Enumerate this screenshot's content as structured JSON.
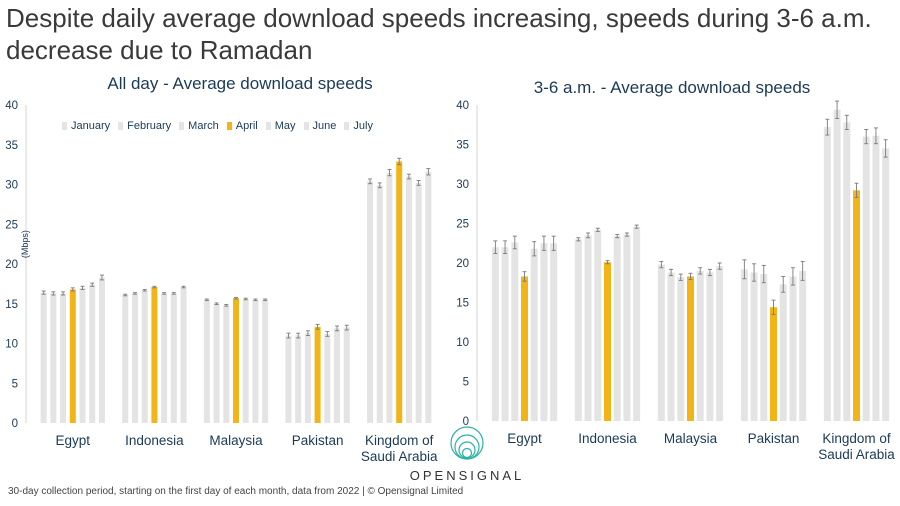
{
  "headline": "Despite daily average download speeds increasing, speeds during 3-6 a.m. decrease due to Ramadan",
  "footnote": "30-day collection period, starting on the first day of each month, data from 2022 | © Opensignal Limited",
  "logo": {
    "text": "OPENSIGNAL",
    "icon": "concentric-circles-icon"
  },
  "colors": {
    "other_months": "#e4e4e4",
    "highlight": "#f2b416",
    "axis_text": "#1b3a57",
    "error_bar": "#7a7a7a"
  },
  "legend": [
    {
      "label": "January",
      "color": "#e4e4e4"
    },
    {
      "label": "February",
      "color": "#e4e4e4"
    },
    {
      "label": "March",
      "color": "#e4e4e4"
    },
    {
      "label": "April",
      "color": "#f2b416"
    },
    {
      "label": "May",
      "color": "#e4e4e4"
    },
    {
      "label": "June",
      "color": "#e4e4e4"
    },
    {
      "label": "July",
      "color": "#e4e4e4"
    }
  ],
  "chart_data": [
    {
      "type": "bar",
      "title": "All day - Average download speeds",
      "ylabel": "(Mbps)",
      "ylim": [
        0,
        40
      ],
      "yticks": [
        0,
        5,
        10,
        15,
        20,
        25,
        30,
        35,
        40
      ],
      "grid": false,
      "legend_position": "top-left",
      "highlight_series": "April",
      "categories": [
        "Egypt",
        "Indonesia",
        "Malaysia",
        "Pakistan",
        "Kingdom of\nSaudi Arabia"
      ],
      "series": [
        {
          "name": "January",
          "values": [
            16.4,
            16.1,
            15.5,
            11.0,
            30.4
          ]
        },
        {
          "name": "February",
          "values": [
            16.3,
            16.3,
            15.0,
            11.0,
            29.9
          ]
        },
        {
          "name": "March",
          "values": [
            16.3,
            16.7,
            14.8,
            11.3,
            31.5
          ]
        },
        {
          "name": "April",
          "values": [
            16.8,
            17.1,
            15.7,
            12.1,
            32.9
          ]
        },
        {
          "name": "May",
          "values": [
            17.0,
            16.3,
            15.6,
            11.2,
            31.0
          ]
        },
        {
          "name": "June",
          "values": [
            17.4,
            16.3,
            15.5,
            11.9,
            30.2
          ]
        },
        {
          "name": "July",
          "values": [
            18.3,
            17.1,
            15.5,
            12.0,
            31.6
          ]
        }
      ],
      "errors": [
        [
          0.2,
          0.1,
          0.1,
          0.3,
          0.3
        ],
        [
          0.2,
          0.1,
          0.1,
          0.3,
          0.3
        ],
        [
          0.2,
          0.1,
          0.1,
          0.3,
          0.4
        ],
        [
          0.2,
          0.1,
          0.1,
          0.3,
          0.4
        ],
        [
          0.2,
          0.1,
          0.1,
          0.3,
          0.3
        ],
        [
          0.2,
          0.1,
          0.1,
          0.3,
          0.3
        ],
        [
          0.3,
          0.1,
          0.1,
          0.3,
          0.4
        ]
      ]
    },
    {
      "type": "bar",
      "title": "3-6 a.m. - Average download speeds",
      "ylabel": "",
      "ylim": [
        0,
        40
      ],
      "yticks": [
        0,
        5,
        10,
        15,
        20,
        25,
        30,
        35,
        40
      ],
      "grid": false,
      "highlight_series": "April",
      "categories": [
        "Egypt",
        "Indonesia",
        "Malaysia",
        "Pakistan",
        "Kingdom of\nSaudi Arabia"
      ],
      "series": [
        {
          "name": "January",
          "values": [
            22.0,
            23.0,
            19.8,
            19.2,
            37.2
          ]
        },
        {
          "name": "February",
          "values": [
            22.0,
            23.5,
            18.8,
            18.8,
            39.4
          ]
        },
        {
          "name": "March",
          "values": [
            22.6,
            24.2,
            18.2,
            18.6,
            37.8
          ]
        },
        {
          "name": "April",
          "values": [
            18.3,
            20.1,
            18.3,
            14.4,
            29.2
          ]
        },
        {
          "name": "May",
          "values": [
            21.8,
            23.4,
            19.0,
            17.3,
            36.0
          ]
        },
        {
          "name": "June",
          "values": [
            22.5,
            23.6,
            18.8,
            18.3,
            36.1
          ]
        },
        {
          "name": "July",
          "values": [
            22.5,
            24.6,
            19.6,
            19.0,
            34.5
          ]
        }
      ],
      "errors": [
        [
          0.8,
          0.2,
          0.4,
          1.2,
          1.0
        ],
        [
          0.8,
          0.3,
          0.4,
          1.1,
          1.1
        ],
        [
          0.8,
          0.2,
          0.4,
          1.1,
          0.9
        ],
        [
          0.6,
          0.2,
          0.4,
          0.9,
          0.9
        ],
        [
          0.9,
          0.2,
          0.4,
          1.0,
          0.9
        ],
        [
          0.9,
          0.2,
          0.4,
          1.1,
          1.0
        ],
        [
          0.9,
          0.2,
          0.4,
          1.2,
          1.1
        ]
      ]
    }
  ]
}
